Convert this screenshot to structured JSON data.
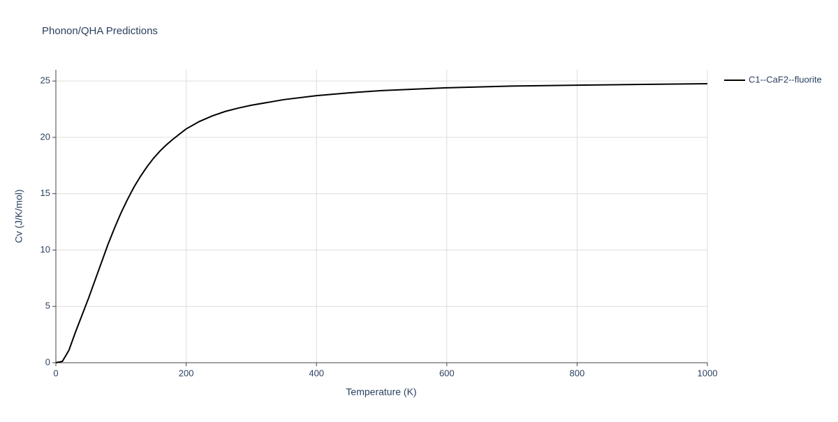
{
  "chart_data": {
    "type": "line",
    "title": "Phonon/QHA Predictions",
    "x_label": "Temperature (K)",
    "y_label": "Cv (J/K/mol)",
    "x": [
      0,
      10,
      20,
      30,
      40,
      50,
      60,
      70,
      80,
      90,
      100,
      110,
      120,
      130,
      140,
      150,
      160,
      170,
      180,
      190,
      200,
      220,
      240,
      260,
      280,
      300,
      350,
      400,
      450,
      500,
      600,
      700,
      800,
      900,
      1000
    ],
    "series": [
      {
        "name": "C1--CaF2--fluorite",
        "color": "#000000",
        "values": [
          0,
          0.12,
          1.1,
          2.7,
          4.2,
          5.7,
          7.3,
          8.9,
          10.5,
          11.95,
          13.3,
          14.5,
          15.6,
          16.55,
          17.4,
          18.15,
          18.8,
          19.35,
          19.85,
          20.3,
          20.75,
          21.4,
          21.9,
          22.3,
          22.6,
          22.85,
          23.35,
          23.7,
          23.95,
          24.15,
          24.4,
          24.55,
          24.63,
          24.7,
          24.76
        ]
      }
    ],
    "xlim": [
      0,
      1000
    ],
    "xticks": [
      0,
      200,
      400,
      600,
      800,
      1000
    ],
    "ylim": [
      0,
      26
    ],
    "yticks": [
      0,
      5,
      10,
      15,
      20,
      25
    ],
    "grid": true,
    "legend": "right"
  }
}
